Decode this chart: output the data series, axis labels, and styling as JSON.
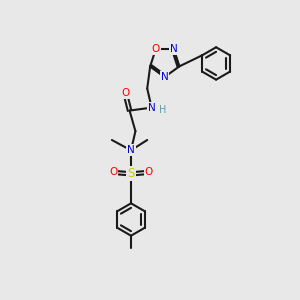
{
  "bg_color": "#e8e8e8",
  "bond_color": "#1a1a1a",
  "atom_colors": {
    "O": "#ff0000",
    "N": "#0000cc",
    "S": "#cccc00",
    "C": "#1a1a1a",
    "H": "#6699aa"
  },
  "bond_width": 1.5,
  "font_size": 8.0,
  "xlim": [
    0,
    10
  ],
  "ylim": [
    0,
    10
  ]
}
